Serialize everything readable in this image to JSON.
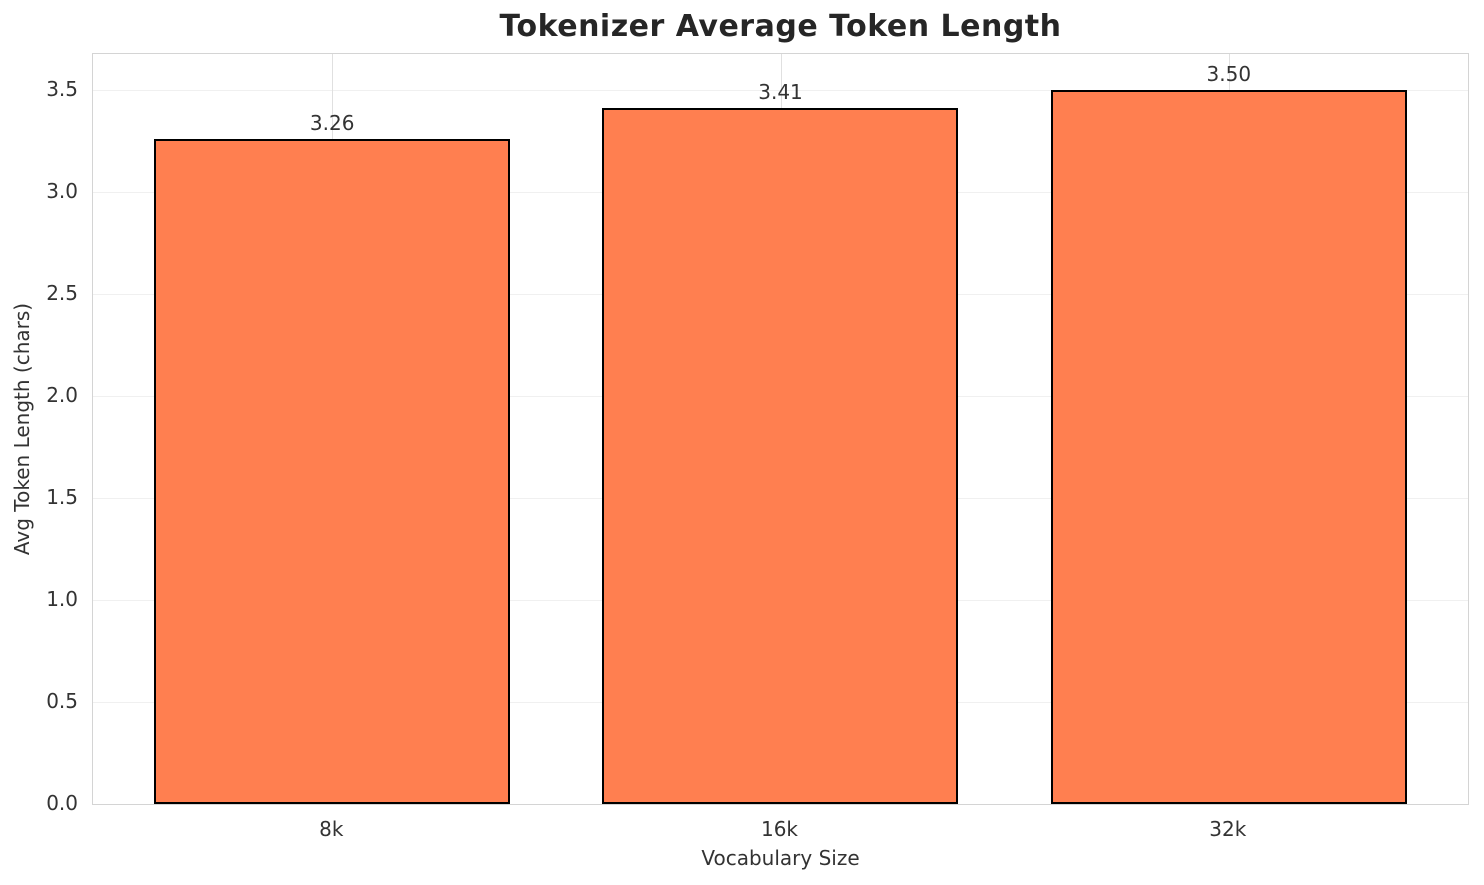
{
  "chart_data": {
    "type": "bar",
    "title": "Tokenizer Average Token Length",
    "xlabel": "Vocabulary Size",
    "ylabel": "Avg Token Length (chars)",
    "categories": [
      "8k",
      "16k",
      "32k"
    ],
    "values": [
      3.26,
      3.41,
      3.5
    ],
    "value_labels": [
      "3.26",
      "3.41",
      "3.50"
    ],
    "ylim": [
      0,
      3.675
    ],
    "yticks": [
      0.0,
      0.5,
      1.0,
      1.5,
      2.0,
      2.5,
      3.0,
      3.5
    ],
    "grid": true,
    "legend_position": "none",
    "colors": {
      "bar_fill": "#FF7F50",
      "bar_edge": "#000000",
      "grid_horizontal": "#f0f0f0",
      "grid_vertical": "#e0e0e0",
      "spine": "#d4d4d4",
      "title_text": "#262626",
      "tick_text": "#333333"
    },
    "layout": {
      "bar_centers_frac": [
        0.174,
        0.5,
        0.826
      ],
      "bar_width_frac": 0.259
    }
  }
}
